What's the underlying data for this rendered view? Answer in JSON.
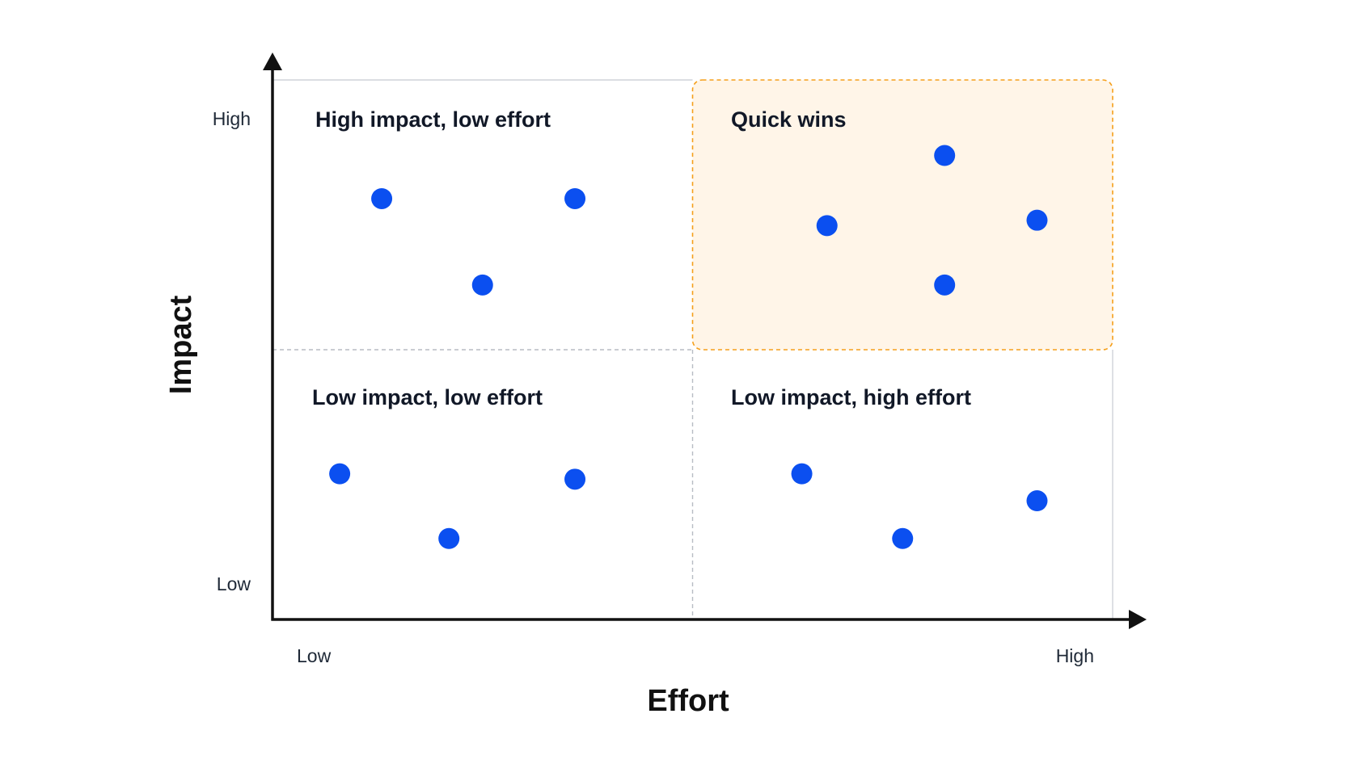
{
  "chart_data": {
    "type": "scatter",
    "xlabel": "Effort",
    "ylabel": "Impact",
    "xlim": [
      0,
      100
    ],
    "ylim": [
      0,
      100
    ],
    "x_tick_labels": {
      "low": "Low",
      "high": "High"
    },
    "y_tick_labels": {
      "low": "Low",
      "high": "High"
    },
    "grid": false,
    "quadrants": [
      {
        "key": "tl",
        "label": "High impact, low effort",
        "highlight": false
      },
      {
        "key": "tr",
        "label": "Quick wins",
        "highlight": true
      },
      {
        "key": "bl",
        "label": "Low impact, low effort",
        "highlight": false
      },
      {
        "key": "br",
        "label": "Low impact, high effort",
        "highlight": false
      }
    ],
    "points": [
      {
        "x": 13,
        "y": 78
      },
      {
        "x": 36,
        "y": 78
      },
      {
        "x": 25,
        "y": 62
      },
      {
        "x": 66,
        "y": 73
      },
      {
        "x": 80,
        "y": 86
      },
      {
        "x": 91,
        "y": 74
      },
      {
        "x": 80,
        "y": 62
      },
      {
        "x": 8,
        "y": 27
      },
      {
        "x": 36,
        "y": 26
      },
      {
        "x": 21,
        "y": 15
      },
      {
        "x": 63,
        "y": 27
      },
      {
        "x": 91,
        "y": 22
      },
      {
        "x": 75,
        "y": 15
      }
    ],
    "colors": {
      "point": "#0b4ff0",
      "highlight_fill": "#fff5e8",
      "highlight_stroke": "#f59f1a",
      "highlight_label": "#f59f1a",
      "divider": "#b8bcc4",
      "axis": "#111111"
    }
  }
}
